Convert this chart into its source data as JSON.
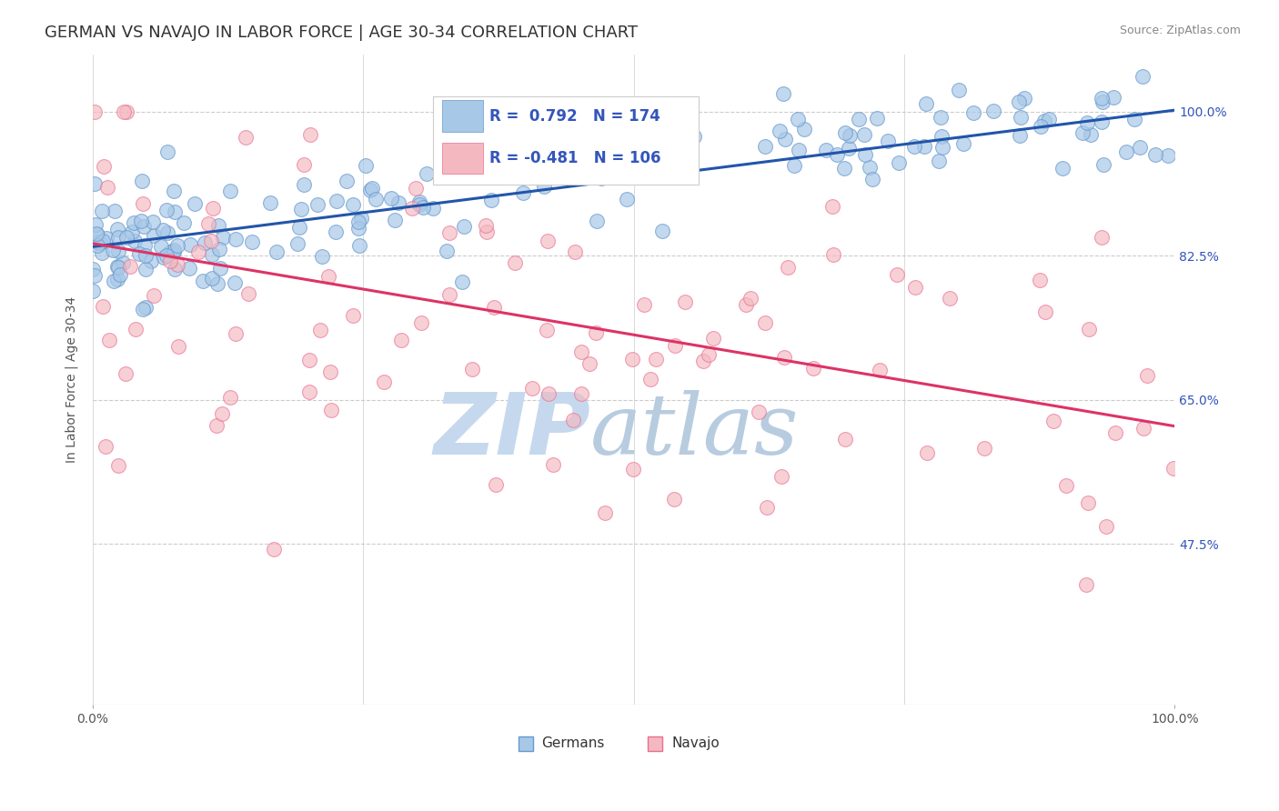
{
  "title": "GERMAN VS NAVAJO IN LABOR FORCE | AGE 30-34 CORRELATION CHART",
  "source": "Source: ZipAtlas.com",
  "ylabel": "In Labor Force | Age 30-34",
  "x_tick_labels": [
    "0.0%",
    "100.0%"
  ],
  "y_tick_labels_right": [
    "100.0%",
    "82.5%",
    "65.0%",
    "47.5%"
  ],
  "x_min": 0.0,
  "x_max": 1.0,
  "y_min": 0.28,
  "y_max": 1.07,
  "y_ticks": [
    0.475,
    0.65,
    0.825,
    1.0
  ],
  "german_R": 0.792,
  "german_N": 174,
  "navajo_R": -0.481,
  "navajo_N": 106,
  "german_color": "#a8c8e8",
  "german_edge_color": "#6699cc",
  "navajo_color": "#f4b8c0",
  "navajo_edge_color": "#e87090",
  "trend_german_color": "#2255aa",
  "trend_navajo_color": "#dd3366",
  "legend_label_german": "Germans",
  "legend_label_navajo": "Navajo",
  "watermark_zip": "ZIP",
  "watermark_atlas": "atlas",
  "watermark_color_zip": "#c5d8ee",
  "watermark_color_atlas": "#b8cce0",
  "background_color": "#ffffff",
  "grid_color": "#cccccc",
  "title_fontsize": 13,
  "axis_label_fontsize": 10,
  "tick_fontsize": 10,
  "legend_fontsize": 12,
  "right_tick_color": "#3355bb",
  "german_trend_start_x": 0.0,
  "german_trend_start_y": 0.836,
  "german_trend_end_x": 1.0,
  "german_trend_end_y": 1.002,
  "navajo_trend_start_x": 0.0,
  "navajo_trend_start_y": 0.84,
  "navajo_trend_end_x": 1.0,
  "navajo_trend_end_y": 0.618
}
